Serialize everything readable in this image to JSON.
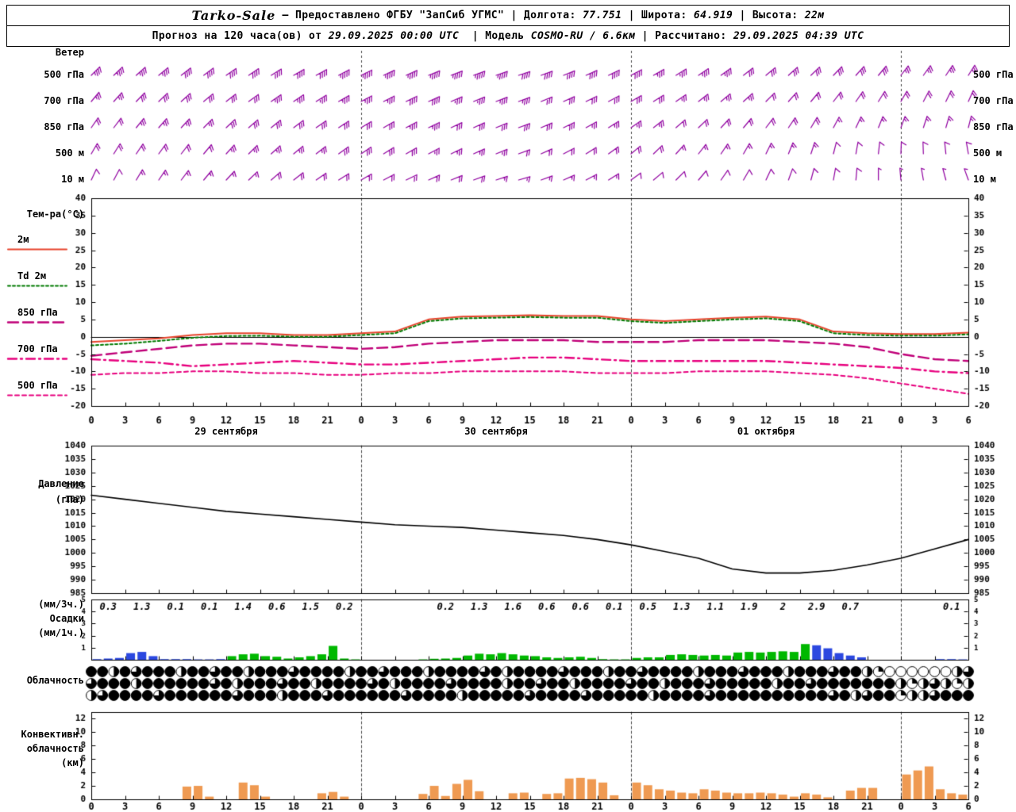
{
  "header": {
    "line1": [
      {
        "text": "Tarko-Sale",
        "style": "station"
      },
      {
        "text": " – Предоставлено ФГБУ \"ЗапСиб УГМС\" ",
        "style": "plain"
      },
      {
        "text": "| Долгота: ",
        "style": "plain"
      },
      {
        "text": "77.751",
        "style": "value"
      },
      {
        "text": " | ",
        "style": "plain"
      },
      {
        "text": "Широта: ",
        "style": "plain"
      },
      {
        "text": "64.919",
        "style": "value"
      },
      {
        "text": " | ",
        "style": "plain"
      },
      {
        "text": "Высота: ",
        "style": "plain"
      },
      {
        "text": "22м",
        "style": "value"
      }
    ],
    "line2": [
      {
        "text": "Прогноз на 120 часа(ов) от ",
        "style": "plain"
      },
      {
        "text": "29.09.2025 00:00 UTC",
        "style": "value"
      },
      {
        "text": "  | ",
        "style": "plain"
      },
      {
        "text": "Модель ",
        "style": "plain"
      },
      {
        "text": "COSMO-RU / 6.6км",
        "style": "value"
      },
      {
        "text": " | ",
        "style": "plain"
      },
      {
        "text": "Рассчитано: ",
        "style": "plain"
      },
      {
        "text": "29.09.2025 04:39 UTC",
        "style": "value"
      }
    ]
  },
  "time_axis": {
    "start_hour": 0,
    "end_hour": 78,
    "label_step": 3,
    "date_labels": [
      {
        "text": "29 сентября",
        "hour": 12
      },
      {
        "text": "30 сентября",
        "hour": 36
      },
      {
        "text": "01 октября",
        "hour": 60
      }
    ],
    "day_boundary_hours": [
      24,
      48,
      72
    ]
  },
  "chart_data": [
    {
      "id": "wind",
      "type": "wind-barbs",
      "title": "Ветер",
      "color": "#9000a0",
      "hour_step": 2,
      "levels": [
        {
          "label": "500 гПа",
          "dirs": [
            45,
            46,
            48,
            50,
            52,
            53,
            55,
            56,
            58,
            60,
            61,
            62,
            64,
            65,
            66,
            68,
            69,
            70,
            71,
            72,
            70,
            68,
            66,
            64,
            62,
            60,
            58,
            56,
            54,
            52,
            50,
            48,
            46,
            44,
            42,
            40,
            38,
            36,
            34,
            32
          ],
          "speeds": [
            18,
            18,
            19,
            19,
            20,
            20,
            21,
            21,
            22,
            22,
            22,
            23,
            23,
            23,
            24,
            24,
            24,
            23,
            23,
            22,
            22,
            21,
            21,
            20,
            20,
            19,
            19,
            18,
            18,
            17,
            17,
            16,
            16,
            15,
            15,
            15,
            14,
            14,
            14,
            14
          ]
        },
        {
          "label": "700 гПа",
          "dirs": [
            40,
            42,
            44,
            46,
            48,
            50,
            52,
            54,
            55,
            56,
            58,
            60,
            62,
            63,
            64,
            66,
            67,
            68,
            69,
            70,
            68,
            66,
            64,
            62,
            60,
            58,
            55,
            52,
            50,
            48,
            45,
            42,
            40,
            38,
            35,
            32,
            30,
            28,
            26,
            24
          ],
          "speeds": [
            14,
            14,
            15,
            15,
            16,
            16,
            17,
            17,
            18,
            18,
            18,
            19,
            19,
            19,
            20,
            20,
            19,
            19,
            18,
            18,
            17,
            17,
            16,
            16,
            15,
            15,
            14,
            14,
            13,
            13,
            12,
            12,
            12,
            11,
            11,
            11,
            10,
            10,
            10,
            10
          ]
        },
        {
          "label": "850 гПа",
          "dirs": [
            35,
            37,
            39,
            41,
            43,
            45,
            47,
            49,
            51,
            53,
            55,
            57,
            59,
            60,
            62,
            64,
            65,
            66,
            68,
            70,
            67,
            64,
            61,
            58,
            55,
            52,
            49,
            46,
            43,
            40,
            37,
            34,
            31,
            28,
            25,
            22,
            20,
            18,
            16,
            14
          ],
          "speeds": [
            12,
            12,
            13,
            13,
            14,
            14,
            15,
            15,
            16,
            16,
            16,
            17,
            17,
            17,
            18,
            18,
            17,
            17,
            16,
            16,
            15,
            15,
            14,
            14,
            13,
            13,
            12,
            12,
            11,
            11,
            10,
            10,
            10,
            9,
            9,
            9,
            8,
            8,
            8,
            8
          ]
        },
        {
          "label": "500 м",
          "dirs": [
            30,
            32,
            34,
            36,
            38,
            40,
            42,
            45,
            48,
            50,
            52,
            54,
            56,
            58,
            60,
            62,
            64,
            66,
            68,
            70,
            66,
            62,
            58,
            54,
            50,
            46,
            42,
            38,
            34,
            30,
            26,
            22,
            18,
            14,
            10,
            6,
            2,
            358,
            354,
            350
          ],
          "speeds": [
            10,
            10,
            11,
            11,
            12,
            12,
            13,
            13,
            14,
            14,
            14,
            15,
            15,
            15,
            15,
            14,
            14,
            13,
            13,
            12,
            12,
            11,
            11,
            10,
            10,
            10,
            9,
            9,
            9,
            8,
            8,
            8,
            8,
            7,
            7,
            7,
            7,
            6,
            6,
            6
          ]
        },
        {
          "label": "10 м",
          "dirs": [
            25,
            28,
            31,
            34,
            37,
            40,
            43,
            46,
            49,
            52,
            55,
            58,
            60,
            62,
            64,
            66,
            68,
            70,
            72,
            74,
            70,
            66,
            62,
            58,
            54,
            50,
            45,
            40,
            35,
            30,
            25,
            20,
            15,
            10,
            5,
            0,
            355,
            350,
            345,
            340
          ],
          "speeds": [
            7,
            7,
            8,
            8,
            8,
            9,
            9,
            9,
            10,
            10,
            10,
            10,
            11,
            11,
            11,
            10,
            10,
            10,
            9,
            9,
            9,
            8,
            8,
            8,
            7,
            7,
            7,
            6,
            6,
            6,
            6,
            5,
            5,
            5,
            5,
            4,
            4,
            4,
            4,
            4
          ]
        }
      ]
    },
    {
      "id": "temperature",
      "type": "line",
      "title": "Тем-ра(°C)",
      "ylim": [
        -20,
        40
      ],
      "ytick_step": 5,
      "hour_step": 3,
      "zero_line": true,
      "series": [
        {
          "label": "2м",
          "color": "#e8432c",
          "dash": "solid",
          "width": 2,
          "values": [
            -1.5,
            -1,
            -0.5,
            0.5,
            1,
            1,
            0.5,
            0.5,
            1,
            1.5,
            5,
            5.8,
            6,
            6.2,
            6,
            6,
            5,
            4.5,
            5,
            5.5,
            5.8,
            5,
            1.5,
            1,
            0.8,
            0.8,
            1.2
          ]
        },
        {
          "label": "Td 2м",
          "color": "#007a00",
          "dash": "dotted",
          "width": 2,
          "values": [
            -2.5,
            -2,
            -1.2,
            -0.3,
            0.2,
            0.3,
            0,
            0,
            0.5,
            1,
            4.5,
            5.3,
            5.5,
            5.7,
            5.5,
            5.5,
            4.5,
            4,
            4.5,
            5,
            5.3,
            4.5,
            1,
            0.5,
            0.3,
            0.3,
            0.7
          ]
        },
        {
          "label": "850 гПа",
          "color": "#c00078",
          "dash": "longdash",
          "width": 2.4,
          "values": [
            -5.5,
            -4.5,
            -3.5,
            -2.5,
            -2,
            -2,
            -2.5,
            -3,
            -3.5,
            -3,
            -2,
            -1.5,
            -1,
            -1,
            -1,
            -1.5,
            -1.5,
            -1.5,
            -1,
            -1,
            -1,
            -1.5,
            -2,
            -3,
            -5,
            -6.5,
            -7
          ]
        },
        {
          "label": "700 гПа",
          "color": "#e8007e",
          "dash": "dashdot",
          "width": 2.4,
          "values": [
            -6.5,
            -7,
            -7.5,
            -8.5,
            -8,
            -7.5,
            -7,
            -7.5,
            -8,
            -8,
            -7.5,
            -7,
            -6.5,
            -6,
            -6,
            -6.5,
            -7,
            -7,
            -7,
            -7,
            -7,
            -7.5,
            -8,
            -8.5,
            -9,
            -10,
            -10.5
          ]
        },
        {
          "label": "500 гПа",
          "color": "#e8007e",
          "dash": "shortdash",
          "width": 2,
          "values": [
            -11,
            -10.5,
            -10.5,
            -10,
            -10,
            -10.5,
            -10.5,
            -11,
            -11,
            -10.5,
            -10.5,
            -10,
            -10,
            -10,
            -10,
            -10.5,
            -10.5,
            -10.5,
            -10,
            -10,
            -10,
            -10.5,
            -11,
            -12,
            -13.5,
            -15,
            -16.5
          ]
        }
      ]
    },
    {
      "id": "pressure",
      "type": "line",
      "title_lines": [
        "Давление",
        "(гПа)"
      ],
      "ylim": [
        985,
        1040
      ],
      "ytick_step": 5,
      "hour_step": 3,
      "color": "#000000",
      "values": [
        1021.5,
        1020,
        1018.5,
        1017,
        1015.5,
        1014.5,
        1013.5,
        1012.5,
        1011.5,
        1010.5,
        1010,
        1009.5,
        1008.5,
        1007.5,
        1006.5,
        1005,
        1003,
        1000.5,
        998,
        994,
        992.5,
        992.5,
        993.5,
        995.5,
        998,
        1001.5,
        1005
      ]
    },
    {
      "id": "precipitation",
      "type": "bar",
      "title_lines": [
        "(мм/3ч.)",
        "Осадки",
        "(мм/1ч.)"
      ],
      "ylim": [
        0,
        5
      ],
      "yticks": [
        1,
        2,
        3,
        4,
        5
      ],
      "amounts_3h": [
        "0.3",
        "1.3",
        "0.1",
        "0.1",
        "1.4",
        "0.6",
        "1.5",
        "0.2",
        "",
        "",
        "0.2",
        "1.3",
        "1.6",
        "0.6",
        "0.6",
        "0.1",
        "0.5",
        "1.3",
        "1.1",
        "1.9",
        "2",
        "2.9",
        "0.7",
        "",
        "",
        "0.1"
      ],
      "bar_colors": {
        "g": "#00b800",
        "b": "#2b48e0"
      },
      "hourly_values": [
        0.05,
        0.1,
        0.15,
        0.55,
        0.65,
        0.3,
        0.05,
        0.05,
        0.05,
        0.03,
        0.03,
        0.05,
        0.3,
        0.45,
        0.5,
        0.3,
        0.25,
        0.1,
        0.2,
        0.3,
        0.45,
        1.15,
        0.1,
        0.03,
        0,
        0,
        0,
        0,
        0,
        0.03,
        0.08,
        0.1,
        0.15,
        0.35,
        0.5,
        0.45,
        0.55,
        0.45,
        0.35,
        0.3,
        0.2,
        0.15,
        0.2,
        0.25,
        0.15,
        0.05,
        0.03,
        0.03,
        0.15,
        0.2,
        0.2,
        0.4,
        0.45,
        0.4,
        0.35,
        0.4,
        0.35,
        0.6,
        0.65,
        0.6,
        0.65,
        0.7,
        0.65,
        1.3,
        1.2,
        0.95,
        0.55,
        0.35,
        0.2,
        0,
        0,
        0,
        0,
        0,
        0,
        0.05,
        0.05,
        0.03
      ],
      "hourly_types": "bbbbbbbbbbbbggggggggggggggggggggggggggggggggggggggggggggggggggggbbbbbbbbbbbbbb"
    },
    {
      "id": "cloudiness",
      "type": "symbols",
      "title": "Облачность",
      "encoding": "digit 0-4 = quarters of circle filled",
      "rows": [
        [
          "4424344424",
          "4344244434",
          "4442443444",
          "2444434244",
          "4434442443",
          "4444244434",
          "4424443442",
          "100000023"
        ],
        [
          "3444244444",
          "4342444344",
          "2444434244",
          "4434444244",
          "3442444434",
          "4244434444",
          "4244344444",
          "442123212"
        ],
        [
          "2344443444",
          "4443444244",
          "4344444434",
          "4442444443",
          "4444344444",
          "2444434444",
          "4444443423",
          "441223444"
        ]
      ]
    },
    {
      "id": "convective-cloud",
      "type": "bar",
      "title_lines": [
        "Конвективн.",
        "облачность",
        "(км)"
      ],
      "ylim": [
        0,
        13
      ],
      "yticks": [
        0,
        2,
        4,
        6,
        8,
        10,
        12
      ],
      "color": "#ef9a52",
      "values": [
        0,
        0,
        0,
        0,
        0,
        0,
        0,
        0,
        1.9,
        2,
        0.4,
        0,
        0,
        2.5,
        2.1,
        0.4,
        0,
        0,
        0,
        0,
        0.9,
        1.1,
        0.4,
        0,
        0,
        0,
        0,
        0,
        0,
        0.8,
        2,
        0.5,
        2.3,
        2.9,
        1.2,
        0,
        0,
        0.9,
        1,
        0,
        0.8,
        0.9,
        3.1,
        3.2,
        3,
        2.5,
        0.6,
        0,
        2.5,
        2.1,
        1.5,
        1.3,
        1,
        0.9,
        1.5,
        1.3,
        1,
        0.9,
        0.9,
        1,
        0.9,
        0.7,
        0.4,
        0.9,
        0.7,
        0.3,
        0,
        1.3,
        1.7,
        1.7,
        0,
        0,
        3.7,
        4.3,
        4.9,
        1.5,
        0.9,
        0.7
      ]
    }
  ]
}
